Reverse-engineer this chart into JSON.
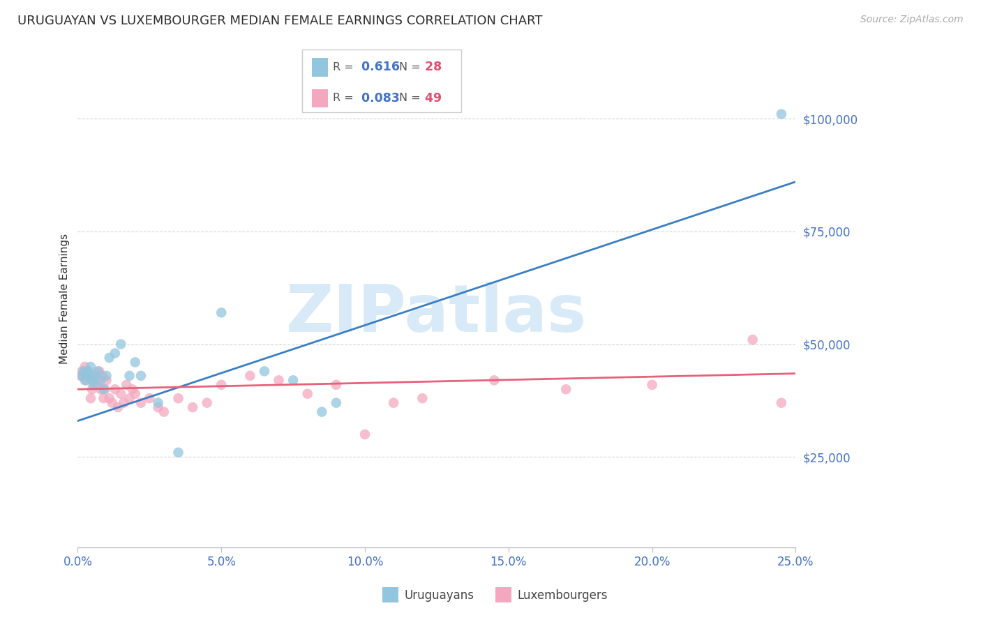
{
  "title": "URUGUAYAN VS LUXEMBOURGER MEDIAN FEMALE EARNINGS CORRELATION CHART",
  "source": "Source: ZipAtlas.com",
  "ylabel": "Median Female Earnings",
  "blue_R": 0.616,
  "blue_N": 28,
  "pink_R": 0.083,
  "pink_N": 49,
  "blue_label": "Uruguayans",
  "pink_label": "Luxembourgers",
  "blue_color": "#92c5de",
  "pink_color": "#f4a8bf",
  "blue_line_color": "#3a7ec1",
  "pink_line_color": "#e8607a",
  "blue_scatter_x": [
    0.15,
    0.2,
    0.25,
    0.3,
    0.35,
    0.4,
    0.45,
    0.5,
    0.55,
    0.6,
    0.7,
    0.8,
    0.9,
    1.0,
    1.1,
    1.3,
    1.5,
    2.0,
    2.2,
    2.8,
    3.5,
    5.0,
    6.5,
    7.5,
    8.5,
    1.8,
    24.5,
    9.0
  ],
  "blue_scatter_y": [
    43000,
    44000,
    42000,
    43500,
    44000,
    43000,
    45000,
    42000,
    41000,
    43000,
    44000,
    42000,
    40000,
    43000,
    47000,
    48000,
    50000,
    46000,
    43000,
    37000,
    26000,
    57000,
    44000,
    42000,
    35000,
    43000,
    101000,
    37000
  ],
  "pink_scatter_x": [
    0.1,
    0.15,
    0.2,
    0.25,
    0.3,
    0.35,
    0.4,
    0.45,
    0.5,
    0.55,
    0.6,
    0.65,
    0.7,
    0.75,
    0.8,
    0.85,
    0.9,
    0.95,
    1.0,
    1.1,
    1.2,
    1.3,
    1.4,
    1.5,
    1.6,
    1.7,
    1.8,
    1.9,
    2.0,
    2.2,
    2.5,
    2.8,
    3.0,
    3.5,
    4.0,
    4.5,
    5.0,
    6.0,
    7.0,
    8.0,
    9.0,
    11.0,
    14.5,
    17.0,
    20.0,
    23.5,
    24.5,
    10.0,
    12.0
  ],
  "pink_scatter_y": [
    43000,
    44000,
    43000,
    45000,
    42000,
    44000,
    43000,
    38000,
    40000,
    42000,
    43000,
    41000,
    42000,
    44000,
    40000,
    43000,
    38000,
    40000,
    42000,
    38000,
    37000,
    40000,
    36000,
    39000,
    37000,
    41000,
    38000,
    40000,
    39000,
    37000,
    38000,
    36000,
    35000,
    38000,
    36000,
    37000,
    41000,
    43000,
    42000,
    39000,
    41000,
    37000,
    42000,
    40000,
    41000,
    51000,
    37000,
    30000,
    38000
  ],
  "blue_line_x": [
    0.0,
    25.0
  ],
  "blue_line_y": [
    33000,
    86000
  ],
  "pink_line_x": [
    0.0,
    25.0
  ],
  "pink_line_y": [
    40000,
    43500
  ],
  "xlim": [
    0,
    25
  ],
  "ylim": [
    5000,
    115000
  ],
  "ytick_vals": [
    25000,
    50000,
    75000,
    100000
  ],
  "ytick_labels": [
    "$25,000",
    "$50,000",
    "$75,000",
    "$100,000"
  ],
  "xtick_vals": [
    0,
    5,
    10,
    15,
    20,
    25
  ],
  "xtick_labels": [
    "0.0%",
    "5.0%",
    "10.0%",
    "15.0%",
    "20.0%",
    "25.0%"
  ],
  "background_color": "#ffffff",
  "title_color": "#2d2d2d",
  "title_fontsize": 13,
  "source_color": "#aaaaaa",
  "axis_color": "#4472c4",
  "grid_color": "#d5d5d5",
  "watermark_text": "ZIPatlas",
  "watermark_color": "#d8eaf7",
  "legend_border_color": "#cccccc",
  "legend_R_color": "#4472c4",
  "legend_N_color": "#e05070",
  "scatter_size": 110,
  "scatter_alpha": 0.75
}
